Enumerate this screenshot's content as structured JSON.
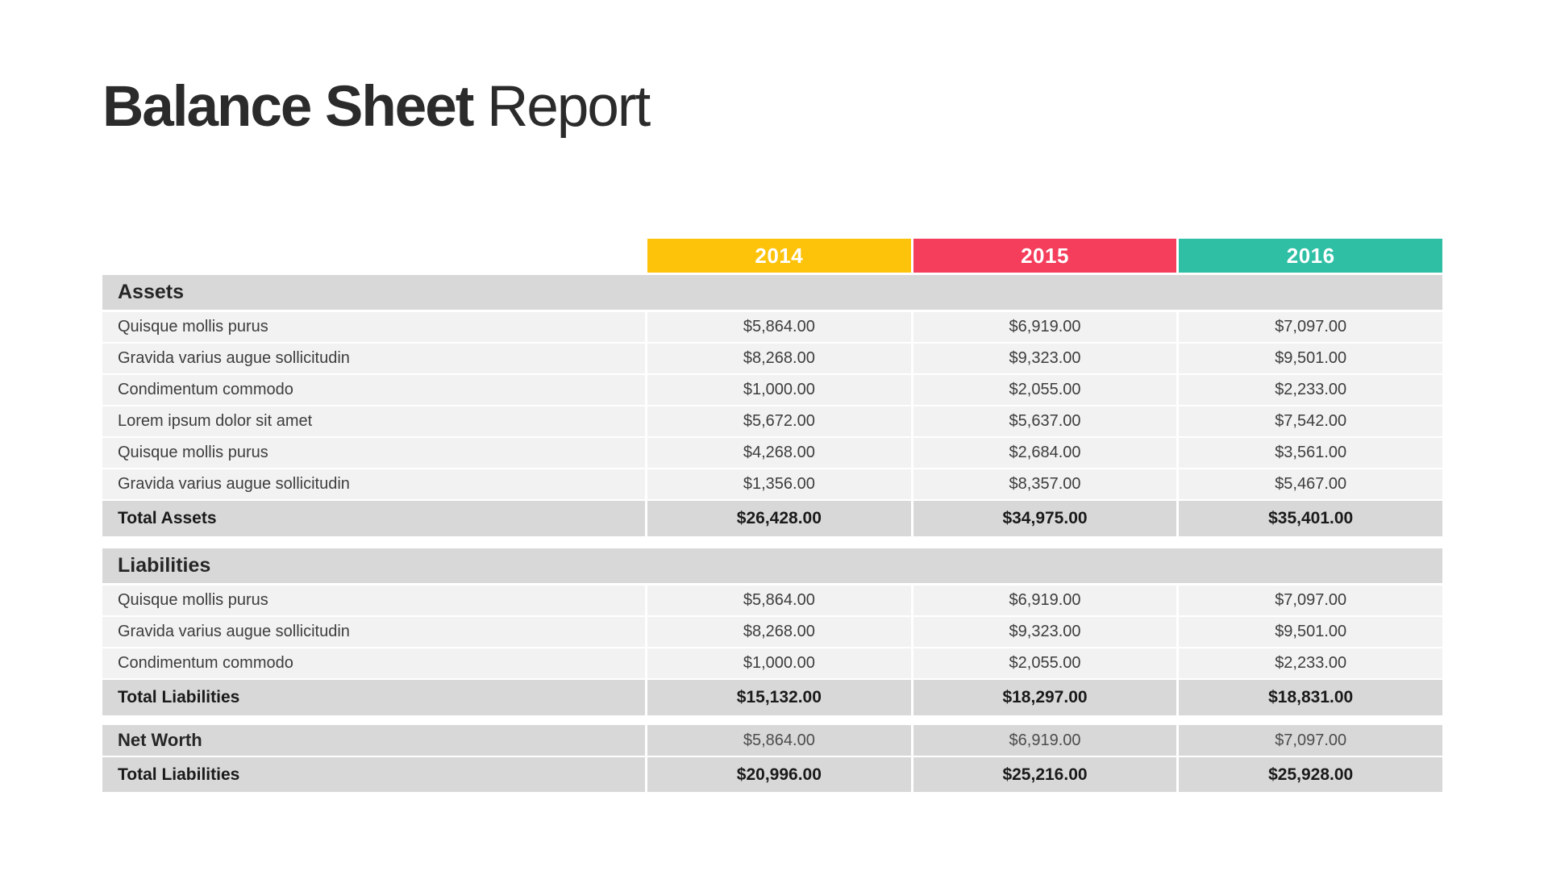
{
  "title": {
    "main": "Balance Sheet",
    "sub": "Report"
  },
  "colors": {
    "year_2014": "#fdc30b",
    "year_2015": "#f43e5c",
    "year_2016": "#2ebfa5",
    "section_bar": "#d8d8d8",
    "data_row_bg": "#f2f2f2",
    "title_text": "#2b2b2b"
  },
  "table": {
    "years": [
      {
        "label": "2014"
      },
      {
        "label": "2015"
      },
      {
        "label": "2016"
      }
    ],
    "sections": [
      {
        "heading": "Assets",
        "rows": [
          {
            "label": "Quisque mollis purus",
            "values": [
              "$5,864.00",
              "$6,919.00",
              "$7,097.00"
            ]
          },
          {
            "label": "Gravida varius augue sollicitudin",
            "values": [
              "$8,268.00",
              "$9,323.00",
              "$9,501.00"
            ]
          },
          {
            "label": "Condimentum commodo",
            "values": [
              "$1,000.00",
              "$2,055.00",
              "$2,233.00"
            ]
          },
          {
            "label": "Lorem ipsum dolor sit amet",
            "values": [
              "$5,672.00",
              "$5,637.00",
              "$7,542.00"
            ]
          },
          {
            "label": "Quisque mollis purus",
            "values": [
              "$4,268.00",
              "$2,684.00",
              "$3,561.00"
            ]
          },
          {
            "label": "Gravida varius augue sollicitudin",
            "values": [
              "$1,356.00",
              "$8,357.00",
              "$5,467.00"
            ]
          }
        ],
        "total": {
          "label": "Total Assets",
          "values": [
            "$26,428.00",
            "$34,975.00",
            "$35,401.00"
          ]
        }
      },
      {
        "heading": "Liabilities",
        "rows": [
          {
            "label": "Quisque mollis purus",
            "values": [
              "$5,864.00",
              "$6,919.00",
              "$7,097.00"
            ]
          },
          {
            "label": "Gravida varius augue sollicitudin",
            "values": [
              "$8,268.00",
              "$9,323.00",
              "$9,501.00"
            ]
          },
          {
            "label": "Condimentum commodo",
            "values": [
              "$1,000.00",
              "$2,055.00",
              "$2,233.00"
            ]
          }
        ],
        "total": {
          "label": "Total Liabilities",
          "values": [
            "$15,132.00",
            "$18,297.00",
            "$18,831.00"
          ]
        }
      }
    ],
    "net_worth": {
      "summary": {
        "label": "Net Worth",
        "values": [
          "$5,864.00",
          "$6,919.00",
          "$7,097.00"
        ]
      },
      "total": {
        "label": "Total Liabilities",
        "values": [
          "$20,996.00",
          "$25,216.00",
          "$25,928.00"
        ]
      }
    }
  }
}
